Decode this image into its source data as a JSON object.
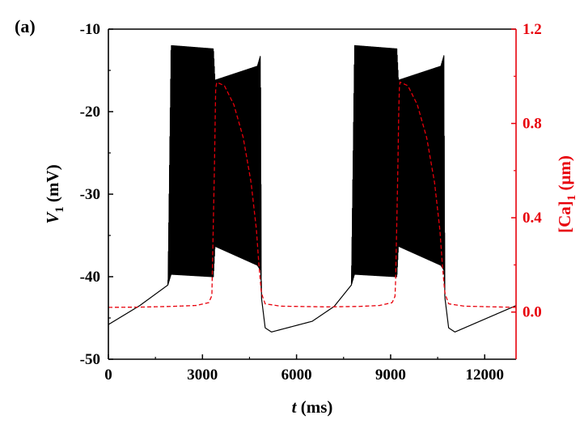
{
  "panel_label": "(a)",
  "colors": {
    "left_axis": "#000000",
    "right_axis": "#e8000b",
    "voltage_trace": "#000000",
    "calcium_trace": "#e8000b"
  },
  "chart_data": {
    "type": "line",
    "panel": "(a)",
    "xlabel": {
      "italic": "t",
      "rest": " (ms)"
    },
    "ylabel_left": {
      "italic": "V",
      "sub": "1",
      "rest": " (mV)"
    },
    "ylabel_right": {
      "main": "[Ca]",
      "sub": "1",
      "rest": " (μm)"
    },
    "xlim": [
      0,
      13000
    ],
    "ylim_left": [
      -50,
      -10
    ],
    "ylim_right": [
      -0.2,
      1.2
    ],
    "x_ticks": [
      0,
      3000,
      6000,
      9000,
      12000
    ],
    "x_tick_labels": [
      "0",
      "3000",
      "6000",
      "9000",
      "12000"
    ],
    "y_left_ticks": [
      -10,
      -20,
      -30,
      -40,
      -50
    ],
    "y_left_tick_labels": [
      "-10",
      "-20",
      "-30",
      "-40",
      "-50"
    ],
    "y_right_ticks": [
      1.2,
      0.8,
      0.4,
      0.0
    ],
    "y_right_tick_labels": [
      "1.2",
      "0.8",
      "0.4",
      "0.0"
    ],
    "series": [
      {
        "name": "V1",
        "axis": "left",
        "style": "solid",
        "color": "#000000",
        "envelope_upper": [
          [
            0,
            -45.8
          ],
          [
            1000,
            -43.5
          ],
          [
            1900,
            -41.0
          ],
          [
            2000,
            -12.0
          ],
          [
            3350,
            -12.4
          ],
          [
            3400,
            -16.2
          ],
          [
            4750,
            -14.5
          ],
          [
            4850,
            -13.2
          ],
          [
            4880,
            -42.5
          ],
          [
            5000,
            -46.2
          ],
          [
            5200,
            -46.7
          ],
          [
            6500,
            -45.4
          ],
          [
            7200,
            -43.6
          ],
          [
            7750,
            -41.0
          ],
          [
            7850,
            -12.0
          ],
          [
            9200,
            -12.4
          ],
          [
            9250,
            -16.2
          ],
          [
            10600,
            -14.5
          ],
          [
            10700,
            -13.2
          ],
          [
            10730,
            -42.5
          ],
          [
            10850,
            -46.2
          ],
          [
            11050,
            -46.7
          ],
          [
            13000,
            -43.5
          ]
        ],
        "envelope_lower": [
          [
            0,
            -45.8
          ],
          [
            1000,
            -43.5
          ],
          [
            1900,
            -41.0
          ],
          [
            2000,
            -39.7
          ],
          [
            3350,
            -40.0
          ],
          [
            3400,
            -36.3
          ],
          [
            4750,
            -38.6
          ],
          [
            4850,
            -39.2
          ],
          [
            4880,
            -42.5
          ],
          [
            5000,
            -46.2
          ],
          [
            5200,
            -46.7
          ],
          [
            6500,
            -45.4
          ],
          [
            7200,
            -43.6
          ],
          [
            7750,
            -41.0
          ],
          [
            7850,
            -39.7
          ],
          [
            9200,
            -40.0
          ],
          [
            9250,
            -36.3
          ],
          [
            10600,
            -38.6
          ],
          [
            10700,
            -39.2
          ],
          [
            10730,
            -42.5
          ],
          [
            10850,
            -46.2
          ],
          [
            11050,
            -46.7
          ],
          [
            13000,
            -43.5
          ]
        ]
      },
      {
        "name": "[Ca]1",
        "axis": "right",
        "style": "dashed",
        "color": "#e8000b",
        "points": [
          [
            0,
            0.02
          ],
          [
            1000,
            0.021
          ],
          [
            2000,
            0.024
          ],
          [
            2800,
            0.028
          ],
          [
            3200,
            0.04
          ],
          [
            3300,
            0.07
          ],
          [
            3380,
            0.6
          ],
          [
            3420,
            0.94
          ],
          [
            3450,
            0.975
          ],
          [
            3700,
            0.96
          ],
          [
            4000,
            0.88
          ],
          [
            4300,
            0.74
          ],
          [
            4550,
            0.55
          ],
          [
            4720,
            0.35
          ],
          [
            4800,
            0.2
          ],
          [
            4880,
            0.08
          ],
          [
            5000,
            0.035
          ],
          [
            5500,
            0.025
          ],
          [
            7000,
            0.022
          ],
          [
            8000,
            0.024
          ],
          [
            8650,
            0.028
          ],
          [
            9050,
            0.04
          ],
          [
            9150,
            0.07
          ],
          [
            9230,
            0.6
          ],
          [
            9270,
            0.94
          ],
          [
            9300,
            0.975
          ],
          [
            9550,
            0.96
          ],
          [
            9850,
            0.88
          ],
          [
            10150,
            0.74
          ],
          [
            10400,
            0.55
          ],
          [
            10570,
            0.35
          ],
          [
            10650,
            0.2
          ],
          [
            10730,
            0.08
          ],
          [
            10850,
            0.035
          ],
          [
            11350,
            0.025
          ],
          [
            13000,
            0.02
          ]
        ]
      }
    ]
  }
}
